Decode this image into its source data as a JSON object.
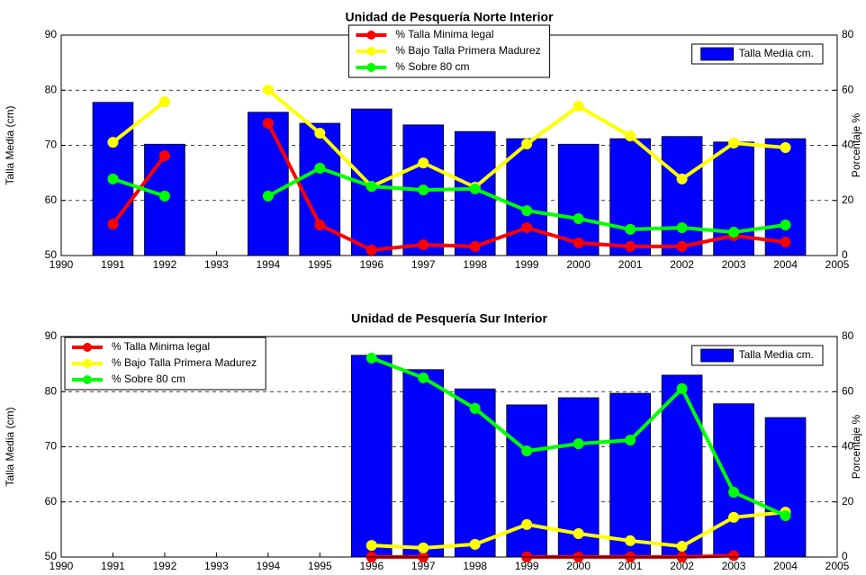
{
  "chart_data": [
    {
      "type": "bar-line",
      "title": "Unidad de Pesquería Norte Interior",
      "ylabel": "Talla Media (cm)",
      "y2label": "Porcentaje %",
      "x": [
        1991,
        1992,
        1993,
        1994,
        1995,
        1996,
        1997,
        1998,
        1999,
        2000,
        2001,
        2002,
        2003,
        2004
      ],
      "xlim": [
        1990,
        2005
      ],
      "xticks": [
        1990,
        1991,
        1992,
        1993,
        1994,
        1995,
        1996,
        1997,
        1998,
        1999,
        2000,
        2001,
        2002,
        2003,
        2004,
        2005
      ],
      "ylim": [
        50,
        90
      ],
      "yticks": [
        50,
        60,
        70,
        80,
        90
      ],
      "y2lim": [
        0,
        80
      ],
      "y2ticks": [
        0,
        20,
        40,
        60,
        80
      ],
      "grid": true,
      "legend": {
        "lines": "upper-center",
        "bars": "upper-right"
      },
      "series": [
        {
          "name": "Talla Media cm.",
          "type": "bar",
          "color": "#0000ff",
          "values": [
            77.8,
            70.2,
            null,
            76.0,
            74.0,
            76.6,
            73.7,
            72.5,
            71.2,
            70.2,
            71.2,
            71.6,
            70.6,
            71.2
          ]
        },
        {
          "name": "% Talla Minima legal",
          "type": "line",
          "axis": "y2",
          "color": "#ff0000",
          "values": [
            11.4,
            36.2,
            null,
            48.0,
            11.1,
            2.0,
            3.9,
            3.3,
            10.1,
            4.6,
            3.3,
            3.3,
            7.2,
            4.9
          ]
        },
        {
          "name": "% Bajo Talla Primera Madurez",
          "type": "line",
          "axis": "y2",
          "color": "#ffff00",
          "values": [
            41.1,
            55.8,
            null,
            60.1,
            44.4,
            25.1,
            33.6,
            24.8,
            40.5,
            54.2,
            43.4,
            27.8,
            40.8,
            39.2
          ]
        },
        {
          "name": "% Sobre 80 cm",
          "type": "line",
          "axis": "y2",
          "color": "#00ff00",
          "values": [
            27.8,
            21.6,
            null,
            21.6,
            31.7,
            25.1,
            23.8,
            24.2,
            16.3,
            13.4,
            9.5,
            10.1,
            8.5,
            11.1
          ]
        }
      ]
    },
    {
      "type": "bar-line",
      "title": "Unidad de Pesquería Sur Interior",
      "ylabel": "Talla Media (cm)",
      "y2label": "Porcentaje %",
      "x": [
        1996,
        1997,
        1998,
        1999,
        2000,
        2001,
        2002,
        2003,
        2004
      ],
      "xlim": [
        1990,
        2005
      ],
      "xticks": [
        1990,
        1991,
        1992,
        1993,
        1994,
        1995,
        1996,
        1997,
        1998,
        1999,
        2000,
        2001,
        2002,
        2003,
        2004,
        2005
      ],
      "ylim": [
        50,
        90
      ],
      "yticks": [
        50,
        60,
        70,
        80,
        90
      ],
      "y2lim": [
        0,
        80
      ],
      "y2ticks": [
        0,
        20,
        40,
        60,
        80
      ],
      "grid": true,
      "legend": {
        "lines": "upper-left",
        "bars": "upper-right"
      },
      "series": [
        {
          "name": "Talla Media cm.",
          "type": "bar",
          "color": "#0000ff",
          "values": [
            86.6,
            84.0,
            80.5,
            77.6,
            78.9,
            79.7,
            83.0,
            77.8,
            75.3
          ]
        },
        {
          "name": "% Talla Minima legal",
          "type": "line",
          "axis": "y2",
          "color": "#ff0000",
          "values": [
            0,
            0,
            null,
            0,
            0,
            0,
            0,
            0.5,
            null
          ]
        },
        {
          "name": "% Bajo Talla Primera Madurez",
          "type": "line",
          "axis": "y2",
          "color": "#ffff00",
          "values": [
            4.2,
            3.3,
            4.6,
            11.8,
            8.5,
            5.9,
            3.9,
            14.4,
            16.3
          ]
        },
        {
          "name": "% Sobre 80 cm",
          "type": "line",
          "axis": "y2",
          "color": "#00ff00",
          "values": [
            72.2,
            65.0,
            53.9,
            38.5,
            41.1,
            42.4,
            61.1,
            23.5,
            15.0
          ]
        }
      ]
    }
  ]
}
